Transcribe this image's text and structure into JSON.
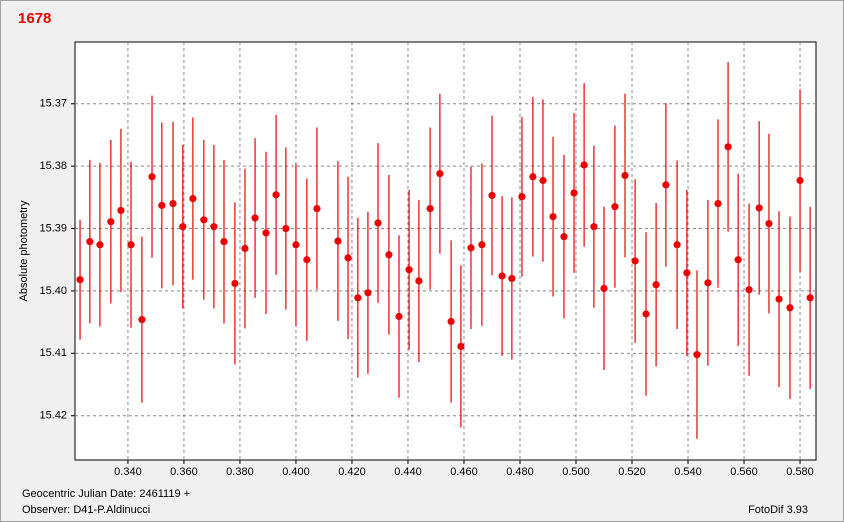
{
  "chart_data": {
    "type": "errorbar",
    "title": "1678",
    "ylabel": "Absolute photometry",
    "xlabel": "Geocentric Julian Date: 2461119 +",
    "annotations": [
      "Observer: D41-P.Aldinucci",
      "FotoDif 3.93"
    ],
    "color": "#ee0000",
    "grid": true,
    "y_inverted": true,
    "xlim": [
      0.3211,
      0.5857
    ],
    "ylim": [
      15.3601,
      15.4271
    ],
    "xticks": [
      {
        "value": 0.34,
        "label": "0.340"
      },
      {
        "value": 0.36,
        "label": "0.360"
      },
      {
        "value": 0.38,
        "label": "0.380"
      },
      {
        "value": 0.4,
        "label": "0.400"
      },
      {
        "value": 0.42,
        "label": "0.420"
      },
      {
        "value": 0.44,
        "label": "0.440"
      },
      {
        "value": 0.46,
        "label": "0.460"
      },
      {
        "value": 0.48,
        "label": "0.480"
      },
      {
        "value": 0.5,
        "label": "0.500"
      },
      {
        "value": 0.52,
        "label": "0.520"
      },
      {
        "value": 0.54,
        "label": "0.540"
      },
      {
        "value": 0.56,
        "label": "0.560"
      },
      {
        "value": 0.58,
        "label": "0.580"
      }
    ],
    "yticks": [
      15.37,
      15.38,
      15.39,
      {
        "value": 15.4,
        "label": "15.40"
      },
      15.41,
      15.42
    ],
    "x": [
      0.3229,
      0.3264,
      0.33,
      0.3339,
      0.3375,
      0.3411,
      0.345,
      0.3486,
      0.3521,
      0.3561,
      0.3596,
      0.3632,
      0.3671,
      0.3707,
      0.3743,
      0.3782,
      0.3818,
      0.3854,
      0.3893,
      0.3929,
      0.3964,
      0.4,
      0.4039,
      0.4075,
      0.415,
      0.4186,
      0.4221,
      0.4257,
      0.4293,
      0.4332,
      0.4368,
      0.4404,
      0.4439,
      0.4479,
      0.4514,
      0.4554,
      0.4589,
      0.4625,
      0.4664,
      0.47,
      0.4736,
      0.4771,
      0.4807,
      0.4846,
      0.4882,
      0.4918,
      0.4957,
      0.4993,
      0.5029,
      0.5064,
      0.51,
      0.5139,
      0.5175,
      0.5211,
      0.525,
      0.5286,
      0.5321,
      0.5361,
      0.5396,
      0.5432,
      0.5471,
      0.5507,
      0.5543,
      0.5579,
      0.5618,
      0.5654,
      0.5689,
      0.5725,
      0.5764,
      0.58,
      0.5836
    ],
    "values": [
      15.3982,
      15.3921,
      15.3926,
      15.3889,
      15.3871,
      15.3926,
      15.4046,
      15.3817,
      15.3863,
      15.386,
      15.3897,
      15.3852,
      15.3886,
      15.3897,
      15.3921,
      15.3988,
      15.3932,
      15.3883,
      15.3907,
      15.3846,
      15.39,
      15.3926,
      15.395,
      15.3868,
      15.392,
      15.3947,
      15.4011,
      15.4003,
      15.3891,
      15.3942,
      15.4041,
      15.3966,
      15.3984,
      15.3868,
      15.3812,
      15.4049,
      15.4089,
      15.3931,
      15.3926,
      15.3847,
      15.3976,
      15.398,
      15.3849,
      15.3817,
      15.3823,
      15.3881,
      15.3913,
      15.3843,
      15.3798,
      15.3897,
      15.3996,
      15.3865,
      15.3815,
      15.3952,
      15.4037,
      15.399,
      15.383,
      15.3926,
      15.3971,
      15.4102,
      15.3987,
      15.386,
      15.3769,
      15.395,
      15.3998,
      15.3867,
      15.3892,
      15.4013,
      15.4027,
      15.3823,
      15.4011
    ],
    "errors": [
      0.0096,
      0.0131,
      0.0131,
      0.0131,
      0.0131,
      0.0133,
      0.0133,
      0.013,
      0.0133,
      0.0131,
      0.0131,
      0.013,
      0.0128,
      0.0131,
      0.0131,
      0.013,
      0.0128,
      0.0128,
      0.013,
      0.0128,
      0.013,
      0.013,
      0.013,
      0.013,
      0.0128,
      0.013,
      0.0128,
      0.013,
      0.0128,
      0.0128,
      0.013,
      0.0128,
      0.013,
      0.013,
      0.0128,
      0.013,
      0.013,
      0.013,
      0.013,
      0.0128,
      0.0128,
      0.013,
      0.0128,
      0.0128,
      0.013,
      0.0128,
      0.0131,
      0.0128,
      0.0131,
      0.013,
      0.0131,
      0.013,
      0.0131,
      0.0131,
      0.0131,
      0.0131,
      0.0131,
      0.0135,
      0.0133,
      0.0135,
      0.0133,
      0.0135,
      0.0136,
      0.0138,
      0.0138,
      0.0139,
      0.0144,
      0.0141,
      0.0146,
      0.0146,
      0.0146
    ]
  }
}
